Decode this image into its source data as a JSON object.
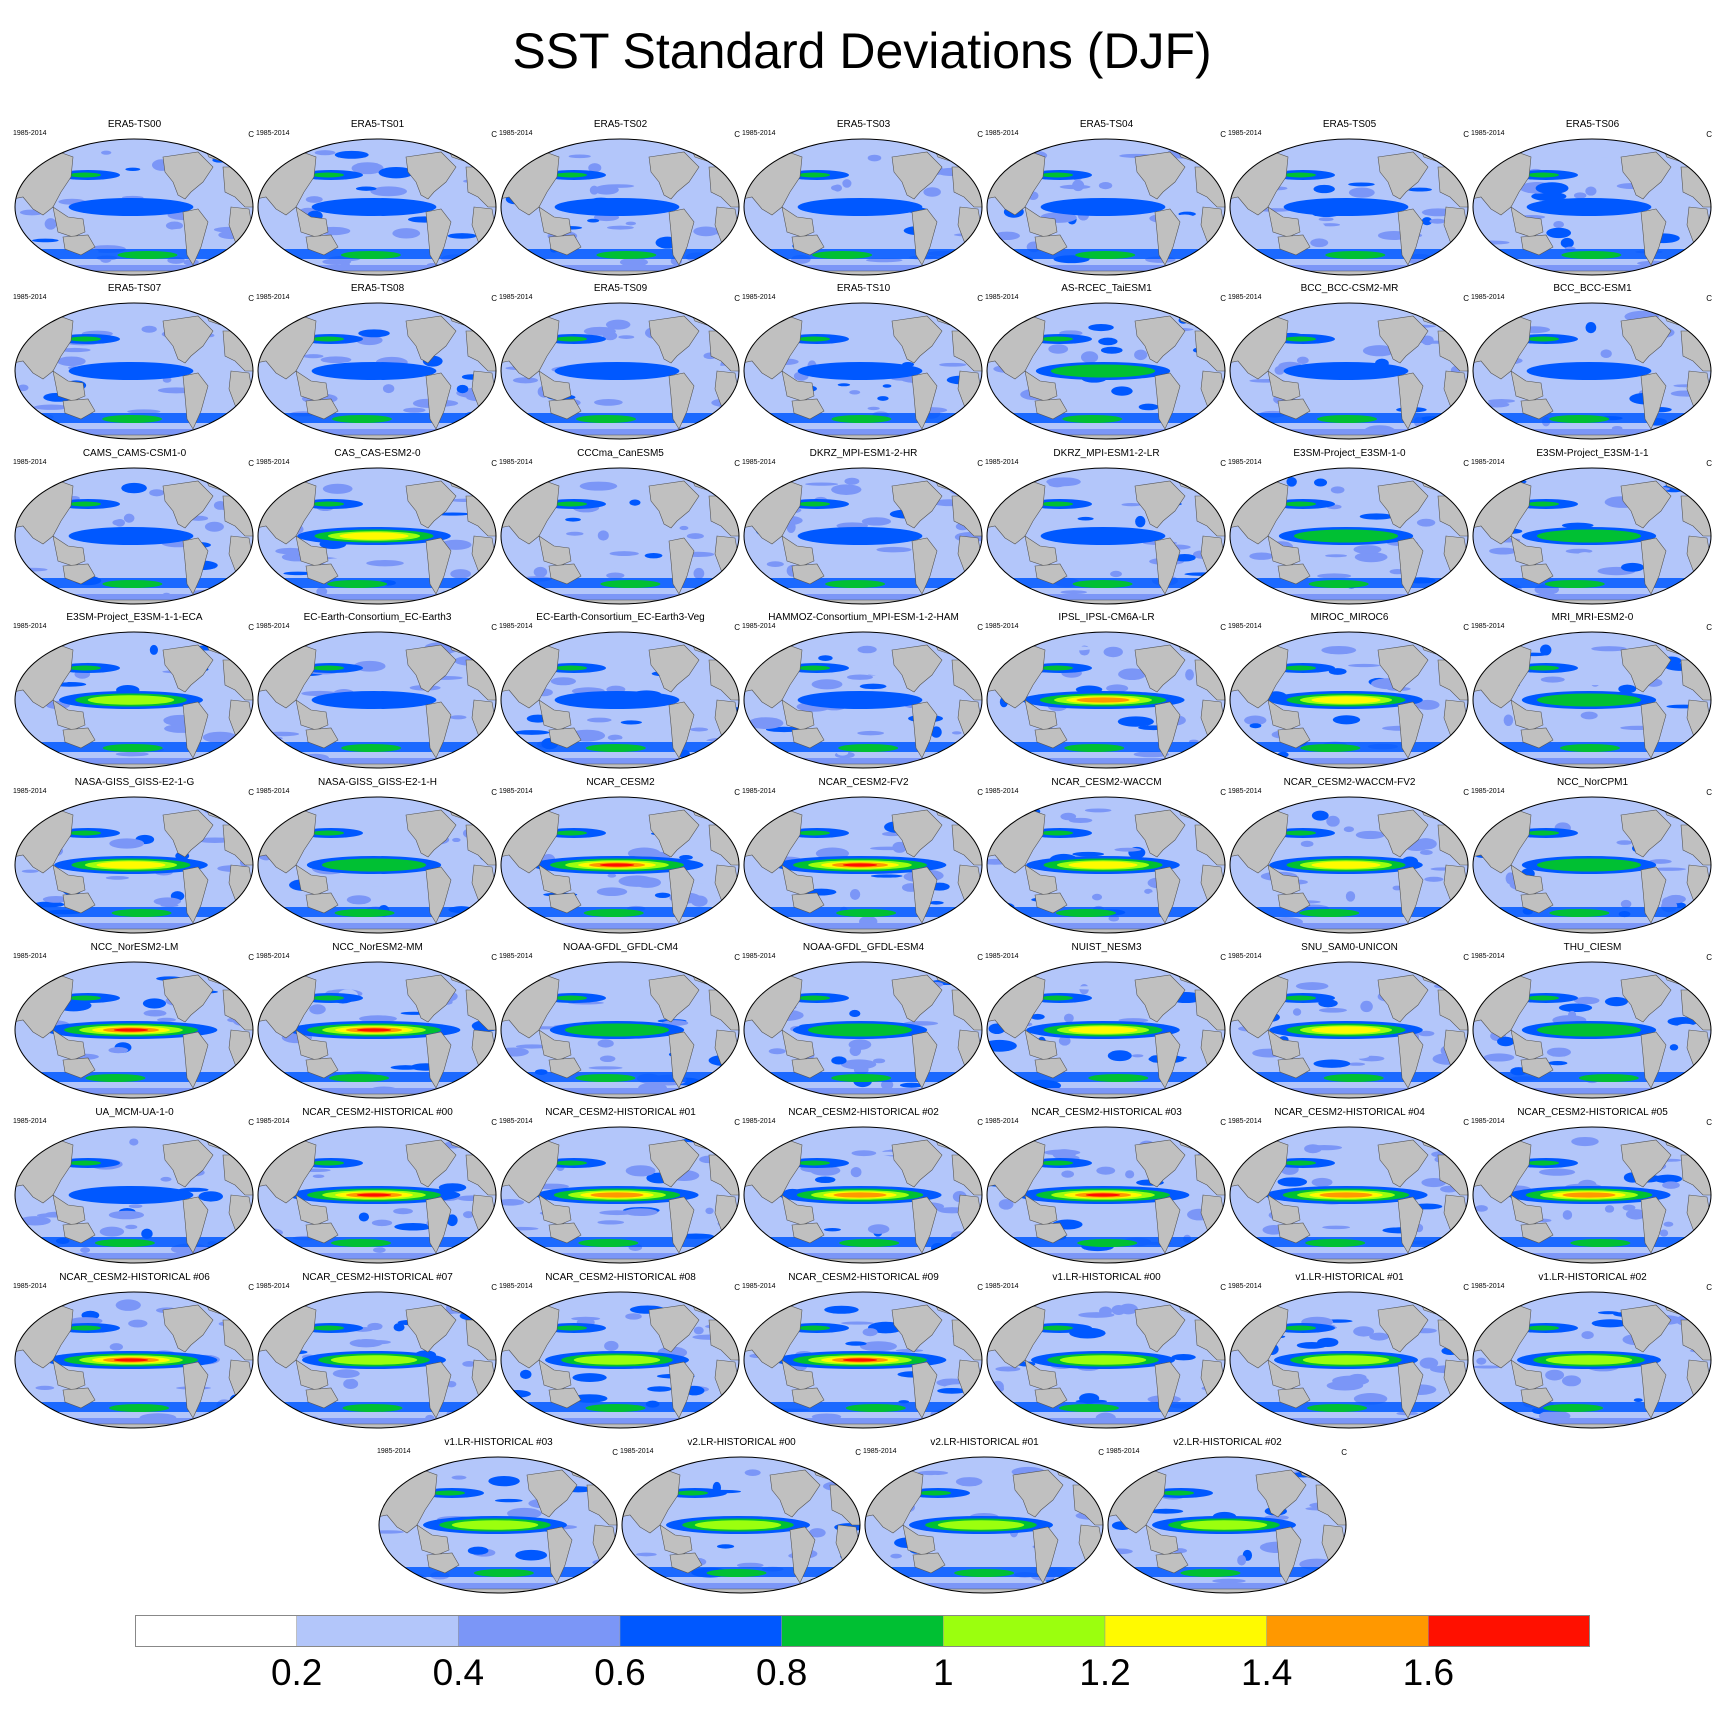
{
  "chart_data": {
    "type": "heatmap",
    "title": "SST Standard Deviations (DJF)",
    "period": "1985-2014",
    "units": "C",
    "panels": [
      "ERA5-TS00",
      "ERA5-TS01",
      "ERA5-TS02",
      "ERA5-TS03",
      "ERA5-TS04",
      "ERA5-TS05",
      "ERA5-TS06",
      "ERA5-TS07",
      "ERA5-TS08",
      "ERA5-TS09",
      "ERA5-TS10",
      "AS-RCEC_TaiESM1",
      "BCC_BCC-CSM2-MR",
      "BCC_BCC-ESM1",
      "CAMS_CAMS-CSM1-0",
      "CAS_CAS-ESM2-0",
      "CCCma_CanESM5",
      "DKRZ_MPI-ESM1-2-HR",
      "DKRZ_MPI-ESM1-2-LR",
      "E3SM-Project_E3SM-1-0",
      "E3SM-Project_E3SM-1-1",
      "E3SM-Project_E3SM-1-1-ECA",
      "EC-Earth-Consortium_EC-Earth3",
      "EC-Earth-Consortium_EC-Earth3-Veg",
      "HAMMOZ-Consortium_MPI-ESM-1-2-HAM",
      "IPSL_IPSL-CM6A-LR",
      "MIROC_MIROC6",
      "MRI_MRI-ESM2-0",
      "NASA-GISS_GISS-E2-1-G",
      "NASA-GISS_GISS-E2-1-H",
      "NCAR_CESM2",
      "NCAR_CESM2-FV2",
      "NCAR_CESM2-WACCM",
      "NCAR_CESM2-WACCM-FV2",
      "NCC_NorCPM1",
      "NCC_NorESM2-LM",
      "NCC_NorESM2-MM",
      "NOAA-GFDL_GFDL-CM4",
      "NOAA-GFDL_GFDL-ESM4",
      "NUIST_NESM3",
      "SNU_SAM0-UNICON",
      "THU_CIESM",
      "UA_MCM-UA-1-0",
      "NCAR_CESM2-HISTORICAL  #00",
      "NCAR_CESM2-HISTORICAL  #01",
      "NCAR_CESM2-HISTORICAL  #02",
      "NCAR_CESM2-HISTORICAL  #03",
      "NCAR_CESM2-HISTORICAL  #04",
      "NCAR_CESM2-HISTORICAL  #05",
      "NCAR_CESM2-HISTORICAL  #06",
      "NCAR_CESM2-HISTORICAL  #07",
      "NCAR_CESM2-HISTORICAL  #08",
      "NCAR_CESM2-HISTORICAL  #09",
      "v1.LR-HISTORICAL  #00",
      "v1.LR-HISTORICAL  #01",
      "v1.LR-HISTORICAL  #02",
      "v1.LR-HISTORICAL  #03",
      "v2.LR-HISTORICAL  #00",
      "v2.LR-HISTORICAL  #01",
      "v2.LR-HISTORICAL  #02"
    ],
    "nino_peak_level": [
      3,
      3,
      3,
      3,
      3,
      3,
      3,
      3,
      3,
      3,
      3,
      4,
      3,
      3,
      3,
      6,
      2,
      3,
      3,
      4,
      4,
      5,
      3,
      3,
      3,
      7,
      6,
      4,
      6,
      4,
      8,
      8,
      6,
      6,
      4,
      8,
      8,
      4,
      4,
      6,
      6,
      4,
      3,
      8,
      7,
      7,
      8,
      7,
      7,
      8,
      5,
      5,
      8,
      5,
      5,
      5,
      5,
      5,
      5,
      5
    ],
    "colorbar": {
      "levels": [
        "0.2",
        "0.4",
        "0.6",
        "0.8",
        "1",
        "1.2",
        "1.4",
        "1.6"
      ],
      "colors": [
        "#ffffff",
        "#b3c6fa",
        "#7b96f7",
        "#0058ff",
        "#00c033",
        "#9bff0e",
        "#fffa00",
        "#ff9800",
        "#ff1000"
      ]
    },
    "land_color": "#c0c0c0"
  }
}
